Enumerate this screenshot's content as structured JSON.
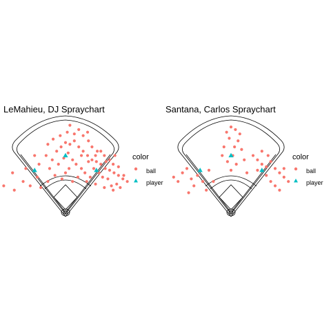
{
  "colors": {
    "ball": "#F8766D",
    "player": "#00BFC4",
    "field_line": "#000000"
  },
  "chart_data": [
    {
      "type": "scatter",
      "title": "LeMahieu, DJ  Spraychart",
      "xlabel": "",
      "ylabel": "",
      "grid": false,
      "legend": {
        "title": "color",
        "placement": "right",
        "entries": [
          "ball",
          "player"
        ]
      },
      "series": [
        {
          "name": "ball",
          "marker": "circle",
          "points": [
            [
              -60,
              25
            ],
            [
              -45,
              30
            ],
            [
              -30,
              35
            ],
            [
              -22,
              45
            ],
            [
              -15,
              40
            ],
            [
              -10,
              50
            ],
            [
              -5,
              55
            ],
            [
              0,
              60
            ],
            [
              5,
              58
            ],
            [
              10,
              62
            ],
            [
              15,
              55
            ],
            [
              20,
              50
            ],
            [
              25,
              45
            ],
            [
              30,
              40
            ],
            [
              35,
              38
            ],
            [
              40,
              35
            ],
            [
              45,
              30
            ],
            [
              50,
              28
            ],
            [
              55,
              25
            ],
            [
              60,
              22
            ],
            [
              65,
              18
            ],
            [
              70,
              15
            ],
            [
              -48,
              15
            ],
            [
              -40,
              10
            ],
            [
              -32,
              20
            ],
            [
              -18,
              30
            ],
            [
              -12,
              22
            ],
            [
              -8,
              35
            ],
            [
              -2,
              42
            ],
            [
              3,
              48
            ],
            [
              8,
              40
            ],
            [
              12,
              35
            ],
            [
              18,
              30
            ],
            [
              22,
              25
            ],
            [
              28,
              20
            ],
            [
              32,
              30
            ],
            [
              38,
              25
            ],
            [
              42,
              20
            ],
            [
              48,
              18
            ],
            [
              52,
              10
            ],
            [
              58,
              12
            ],
            [
              62,
              8
            ],
            [
              66,
              22
            ],
            [
              10,
              70
            ],
            [
              2,
              72
            ],
            [
              -6,
              68
            ],
            [
              -14,
              64
            ],
            [
              -20,
              58
            ],
            [
              20,
              68
            ],
            [
              26,
              62
            ],
            [
              30,
              55
            ],
            [
              36,
              50
            ],
            [
              44,
              45
            ],
            [
              50,
              40
            ],
            [
              54,
              35
            ],
            [
              60,
              32
            ],
            [
              -70,
              10
            ],
            [
              -58,
              5
            ],
            [
              -35,
              45
            ],
            [
              5,
              80
            ],
            [
              15,
              75
            ],
            [
              25,
              72
            ],
            [
              0,
              25
            ],
            [
              4,
              30
            ],
            [
              14,
              20
            ],
            [
              24,
              15
            ],
            [
              34,
              12
            ],
            [
              44,
              8
            ],
            [
              54,
              5
            ],
            [
              -20,
              15
            ],
            [
              -28,
              8
            ],
            [
              18,
              45
            ],
            [
              26,
              38
            ],
            [
              34,
              45
            ],
            [
              40,
              50
            ],
            [
              46,
              38
            ],
            [
              56,
              45
            ],
            [
              -4,
              18
            ],
            [
              8,
              15
            ]
          ]
        },
        {
          "name": "player",
          "marker": "triangle",
          "points": [
            [
              -35,
              28
            ],
            [
              0,
              45
            ],
            [
              35,
              28
            ]
          ]
        }
      ]
    },
    {
      "type": "scatter",
      "title": "Santana, Carlos  Spraychart",
      "xlabel": "",
      "ylabel": "",
      "grid": false,
      "legend": {
        "title": "color",
        "placement": "right",
        "entries": [
          "ball",
          "player"
        ]
      },
      "series": [
        {
          "name": "ball",
          "marker": "circle",
          "points": [
            [
              -65,
              20
            ],
            [
              -60,
              15
            ],
            [
              -55,
              25
            ],
            [
              -50,
              30
            ],
            [
              -45,
              18
            ],
            [
              -42,
              10
            ],
            [
              -38,
              22
            ],
            [
              -32,
              15
            ],
            [
              -28,
              5
            ],
            [
              -25,
              28
            ],
            [
              -48,
              2
            ],
            [
              -5,
              72
            ],
            [
              0,
              78
            ],
            [
              5,
              75
            ],
            [
              10,
              70
            ],
            [
              -2,
              65
            ],
            [
              8,
              62
            ],
            [
              4,
              55
            ],
            [
              -8,
              55
            ],
            [
              12,
              52
            ],
            [
              2,
              45
            ],
            [
              -4,
              38
            ],
            [
              6,
              35
            ],
            [
              0,
              28
            ],
            [
              -10,
              45
            ],
            [
              15,
              40
            ],
            [
              25,
              45
            ],
            [
              30,
              40
            ],
            [
              35,
              35
            ],
            [
              40,
              32
            ],
            [
              45,
              38
            ],
            [
              50,
              30
            ],
            [
              55,
              25
            ],
            [
              60,
              20
            ],
            [
              65,
              15
            ],
            [
              40,
              22
            ],
            [
              45,
              15
            ],
            [
              50,
              10
            ],
            [
              55,
              5
            ],
            [
              60,
              30
            ],
            [
              35,
              50
            ],
            [
              42,
              45
            ],
            [
              30,
              28
            ],
            [
              -20,
              15
            ],
            [
              18,
              25
            ]
          ]
        },
        {
          "name": "player",
          "marker": "triangle",
          "points": [
            [
              -35,
              28
            ],
            [
              0,
              45
            ],
            [
              35,
              28
            ]
          ]
        }
      ]
    }
  ]
}
